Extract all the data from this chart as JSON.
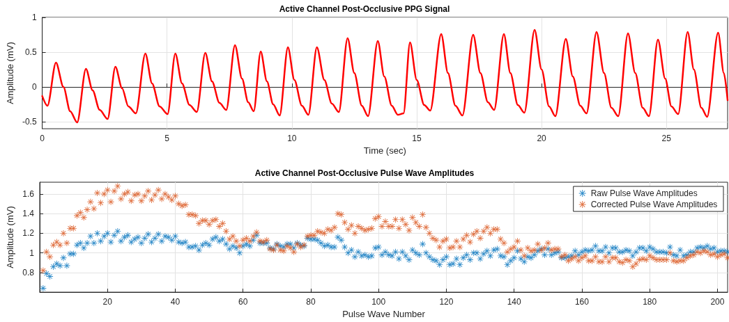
{
  "chart_data": [
    {
      "type": "line",
      "title": "Active Channel Post-Occlusive PPG Signal",
      "xlabel": "Time (sec)",
      "ylabel": "Amplitude (mV)",
      "xlim": [
        0,
        27.45
      ],
      "xticks": [
        0,
        5,
        10,
        15,
        20,
        25
      ],
      "ylim": [
        -0.6,
        1
      ],
      "yticks": [
        -0.5,
        0,
        0.5,
        1
      ],
      "grid": true,
      "series": [
        {
          "color": "#ff0000",
          "x": [
            0,
            0.21,
            0.55,
            0.85,
            1.12,
            1.4,
            1.75,
            2.02,
            2.3,
            2.62,
            2.93,
            3.2,
            3.45,
            3.75,
            4.13,
            4.4,
            4.7,
            5.02,
            5.33,
            5.6,
            5.9,
            6.19,
            6.53,
            6.8,
            7.1,
            7.37,
            7.72,
            8.0,
            8.25,
            8.47,
            8.75,
            9.0,
            9.25,
            9.51,
            9.84,
            10.1,
            10.4,
            10.66,
            11.0,
            11.3,
            11.6,
            11.88,
            12.23,
            12.5,
            12.8,
            13.05,
            13.44,
            13.7,
            14.0,
            14.24,
            14.47,
            14.73,
            15.0,
            15.3,
            15.54,
            15.98,
            16.25,
            16.55,
            16.83,
            17.26,
            17.55,
            17.85,
            18.1,
            18.49,
            18.75,
            19.05,
            19.31,
            19.72,
            20.0,
            20.3,
            20.55,
            20.97,
            21.25,
            21.55,
            21.8,
            22.2,
            22.5,
            22.8,
            23.07,
            23.46,
            23.75,
            24.05,
            24.3,
            24.66,
            24.95,
            25.2,
            25.47,
            25.85,
            26.1,
            26.4,
            26.63,
            27.07,
            27.3,
            27.45
          ],
          "values": [
            -0.13,
            -0.27,
            0.35,
            0.0,
            -0.35,
            -0.51,
            0.26,
            -0.05,
            -0.33,
            -0.46,
            0.29,
            -0.02,
            -0.28,
            -0.38,
            0.48,
            0.05,
            -0.28,
            -0.39,
            0.48,
            0.05,
            -0.26,
            -0.36,
            0.49,
            0.08,
            -0.23,
            -0.33,
            0.6,
            0.12,
            -0.22,
            -0.35,
            0.51,
            0.08,
            -0.25,
            -0.41,
            0.57,
            0.1,
            -0.27,
            -0.4,
            0.57,
            0.1,
            -0.24,
            -0.36,
            0.7,
            0.2,
            -0.27,
            -0.42,
            0.66,
            0.15,
            -0.27,
            -0.4,
            -0.38,
            0.64,
            0.1,
            -0.26,
            -0.34,
            0.76,
            0.2,
            -0.27,
            -0.41,
            0.75,
            0.2,
            -0.22,
            -0.33,
            0.76,
            0.2,
            -0.26,
            -0.37,
            0.82,
            0.25,
            -0.28,
            -0.42,
            0.69,
            0.15,
            -0.27,
            -0.38,
            0.79,
            0.2,
            -0.3,
            -0.42,
            0.77,
            0.2,
            -0.3,
            -0.42,
            0.68,
            0.12,
            -0.28,
            -0.39,
            0.79,
            0.25,
            -0.3,
            -0.43,
            0.78,
            0.2,
            -0.19
          ]
        }
      ]
    },
    {
      "type": "scatter",
      "title": "Active Channel Post-Occlusive Pulse Wave Amplitudes",
      "xlabel": "Pulse Wave Number",
      "ylabel": "Amplitude (mV)",
      "xlim": [
        0,
        203
      ],
      "xticks": [
        20,
        40,
        60,
        80,
        100,
        120,
        140,
        160,
        180,
        200
      ],
      "ylim": [
        0.6,
        1.72
      ],
      "yticks": [
        0.8,
        1,
        1.2,
        1.4,
        1.6
      ],
      "grid": true,
      "legend": "top right",
      "marker": "star",
      "x": [
        1,
        2,
        3,
        4,
        5,
        6,
        7,
        8,
        9,
        10,
        11,
        12,
        13,
        14,
        15,
        16,
        17,
        18,
        19,
        20,
        21,
        22,
        23,
        24,
        25,
        26,
        27,
        28,
        29,
        30,
        31,
        32,
        33,
        34,
        35,
        36,
        37,
        38,
        39,
        40,
        41,
        42,
        43,
        44,
        45,
        46,
        47,
        48,
        49,
        50,
        51,
        52,
        53,
        54,
        55,
        56,
        57,
        58,
        59,
        60,
        61,
        62,
        63,
        64,
        65,
        66,
        67,
        68,
        69,
        70,
        71,
        72,
        73,
        74,
        75,
        76,
        77,
        78,
        79,
        80,
        81,
        82,
        83,
        84,
        85,
        86,
        87,
        88,
        89,
        90,
        91,
        92,
        93,
        94,
        95,
        96,
        97,
        98,
        99,
        100,
        101,
        102,
        103,
        104,
        105,
        106,
        107,
        108,
        109,
        110,
        111,
        112,
        113,
        114,
        115,
        116,
        117,
        118,
        119,
        120,
        121,
        122,
        123,
        124,
        125,
        126,
        127,
        128,
        129,
        130,
        131,
        132,
        133,
        134,
        135,
        136,
        137,
        138,
        139,
        140,
        141,
        142,
        143,
        144,
        145,
        146,
        147,
        148,
        149,
        150,
        151,
        152,
        153,
        154,
        155,
        156,
        157,
        158,
        159,
        160,
        161,
        162,
        163,
        164,
        165,
        166,
        167,
        168,
        169,
        170,
        171,
        172,
        173,
        174,
        175,
        176,
        177,
        178,
        179,
        180,
        181,
        182,
        183,
        184,
        185,
        186,
        187,
        188,
        189,
        190,
        191,
        192,
        193,
        194,
        195,
        196,
        197,
        198,
        199,
        200,
        201,
        202,
        203
      ],
      "series": [
        {
          "name": "Raw Pulse Wave Amplitudes",
          "color": "#0072bd",
          "values": [
            0.64,
            0.79,
            0.76,
            0.86,
            0.89,
            0.87,
            0.95,
            0.87,
            0.99,
            0.99,
            1.08,
            1.1,
            1.05,
            1.1,
            1.17,
            1.1,
            1.2,
            1.12,
            1.17,
            1.2,
            1.11,
            1.18,
            1.22,
            1.12,
            1.16,
            1.18,
            1.11,
            1.14,
            1.16,
            1.1,
            1.15,
            1.19,
            1.11,
            1.15,
            1.19,
            1.12,
            1.17,
            1.16,
            1.13,
            1.17,
            1.11,
            1.1,
            1.11,
            1.06,
            1.06,
            1.07,
            1.03,
            1.08,
            1.1,
            1.08,
            1.14,
            1.16,
            1.12,
            1.14,
            1.09,
            1.04,
            1.07,
            1.05,
            1.0,
            1.07,
            1.09,
            1.07,
            1.13,
            1.18,
            1.1,
            1.1,
            1.1,
            1.05,
            1.04,
            1.09,
            1.07,
            1.06,
            1.09,
            1.09,
            1.05,
            1.1,
            1.08,
            1.07,
            1.15,
            1.14,
            1.14,
            1.13,
            1.1,
            1.07,
            1.08,
            1.06,
            1.06,
            1.16,
            1.13,
            1.06,
            1.0,
            1.03,
            0.96,
            1.01,
            0.97,
            0.98,
            0.96,
            0.97,
            1.05,
            1.06,
            0.98,
            1.01,
            0.98,
            0.97,
            1.01,
            0.94,
            1.01,
            0.97,
            0.93,
            1.03,
            1.0,
            0.98,
            1.09,
            1.0,
            0.96,
            0.93,
            0.92,
            0.88,
            0.93,
            0.96,
            0.88,
            0.89,
            0.94,
            0.88,
            0.95,
            0.98,
            0.93,
            1.0,
            1.0,
            0.94,
            0.99,
            1.02,
            0.97,
            1.03,
            1.04,
            0.97,
            0.96,
            0.88,
            0.92,
            0.95,
            1.02,
            0.94,
            0.91,
            0.96,
            0.95,
            0.98,
            1.02,
            1.04,
            0.98,
            1.04,
            0.98,
            1.0,
            1.01,
            0.95,
            0.95,
            0.96,
            0.97,
            1.02,
            0.98,
            1.01,
            1.03,
            1.02,
            1.03,
            1.07,
            1.02,
            1.02,
            1.06,
            1.0,
            1.05,
            1.05,
            1.01,
            1.01,
            1.03,
            1.02,
            0.97,
            1.01,
            1.05,
            1.05,
            1.02,
            1.06,
            1.04,
            1.01,
            1.01,
            1.01,
            1.0,
            1.06,
            0.98,
            0.97,
            1.03,
            0.97,
            0.98,
            1.01,
            1.01,
            1.05,
            1.06,
            1.05,
            1.07,
            1.04,
            1.05,
            1.01,
            1.02,
            1.02,
            1.01
          ]
        },
        {
          "name": "Corrected Pulse Wave Amplitudes",
          "color": "#d95319",
          "values": [
            0.82,
            1.01,
            0.96,
            1.08,
            1.11,
            1.08,
            1.2,
            1.1,
            1.25,
            1.25,
            1.38,
            1.41,
            1.36,
            1.44,
            1.52,
            1.45,
            1.61,
            1.51,
            1.6,
            1.64,
            1.52,
            1.63,
            1.68,
            1.55,
            1.6,
            1.62,
            1.53,
            1.59,
            1.6,
            1.53,
            1.58,
            1.63,
            1.54,
            1.59,
            1.64,
            1.55,
            1.6,
            1.57,
            1.54,
            1.58,
            1.5,
            1.48,
            1.49,
            1.39,
            1.39,
            1.38,
            1.3,
            1.33,
            1.33,
            1.29,
            1.33,
            1.34,
            1.27,
            1.3,
            1.22,
            1.14,
            1.17,
            1.12,
            1.07,
            1.13,
            1.15,
            1.12,
            1.17,
            1.21,
            1.12,
            1.11,
            1.13,
            1.04,
            1.03,
            1.08,
            1.03,
            1.02,
            1.07,
            1.05,
            1.01,
            1.09,
            1.06,
            1.08,
            1.17,
            1.18,
            1.18,
            1.22,
            1.21,
            1.2,
            1.24,
            1.23,
            1.26,
            1.4,
            1.39,
            1.31,
            1.24,
            1.28,
            1.2,
            1.27,
            1.25,
            1.23,
            1.24,
            1.25,
            1.35,
            1.37,
            1.27,
            1.32,
            1.27,
            1.27,
            1.34,
            1.25,
            1.34,
            1.29,
            1.23,
            1.36,
            1.31,
            1.27,
            1.39,
            1.26,
            1.2,
            1.15,
            1.13,
            1.06,
            1.12,
            1.14,
            1.05,
            1.06,
            1.12,
            1.06,
            1.14,
            1.18,
            1.11,
            1.19,
            1.22,
            1.15,
            1.22,
            1.26,
            1.2,
            1.24,
            1.24,
            1.14,
            1.1,
            1.01,
            1.04,
            1.06,
            1.12,
            1.03,
            0.97,
            1.05,
            1.02,
            1.03,
            1.09,
            1.03,
            1.05,
            1.1,
            1.03,
            1.04,
            1.04,
            0.96,
            0.98,
            0.92,
            0.94,
            0.96,
            0.92,
            0.95,
            0.97,
            0.92,
            0.92,
            0.96,
            0.91,
            0.91,
            0.96,
            0.91,
            0.95,
            0.95,
            0.91,
            0.9,
            0.93,
            0.92,
            0.86,
            0.89,
            0.93,
            0.94,
            0.93,
            0.97,
            0.95,
            0.93,
            0.93,
            0.93,
            0.93,
            1.0,
            0.92,
            0.91,
            0.92,
            0.92,
            0.95,
            0.97,
            0.98,
            1.01,
            1.0,
            1.02,
            1.01,
            0.98,
            0.99,
            0.96,
            0.98,
            0.99,
            0.95
          ]
        }
      ]
    }
  ]
}
